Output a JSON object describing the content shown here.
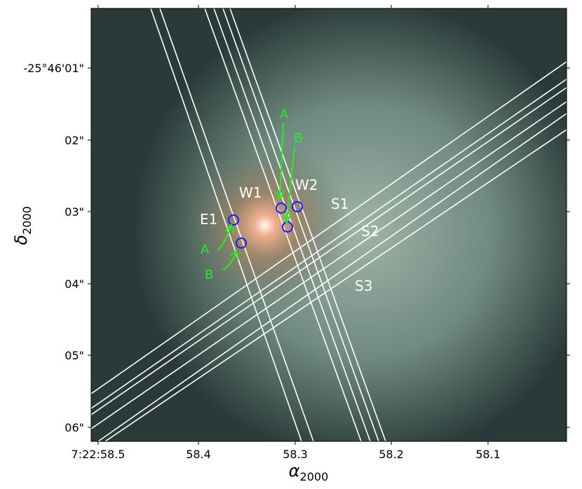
{
  "figure": {
    "xticks": [
      "7:22:58.5",
      "58.4",
      "58.3",
      "58.2",
      "58.1"
    ],
    "yticks": [
      "-25°46'01\"",
      "02\"",
      "03\"",
      "04\"",
      "05\"",
      "06\""
    ],
    "xlabel": {
      "symbol": "α",
      "subscript": "2000"
    },
    "ylabel": {
      "symbol": "δ",
      "subscript": "2000"
    },
    "slit_labels": [
      "E1",
      "W1",
      "W2",
      "S1",
      "S2",
      "S3"
    ],
    "position_labels": [
      "A",
      "B",
      "A",
      "B"
    ]
  }
}
